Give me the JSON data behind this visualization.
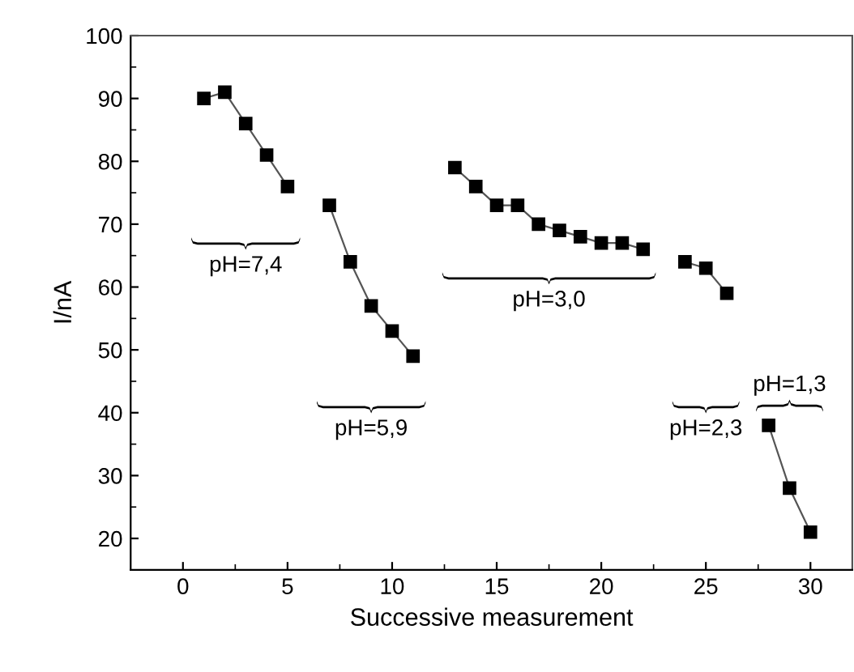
{
  "chart_data": {
    "type": "line",
    "xlabel": "Successive measurement",
    "ylabel": "I/nA",
    "xlim": [
      -2.5,
      32
    ],
    "ylim": [
      15,
      100
    ],
    "xticks": [
      0,
      5,
      10,
      15,
      20,
      25,
      30
    ],
    "yticks": [
      20,
      30,
      40,
      50,
      60,
      70,
      80,
      90,
      100
    ],
    "marker": "square",
    "line_style": "solid",
    "grid": false,
    "legend": false,
    "series": [
      {
        "color": "#000000",
        "x": [
          1,
          2,
          3,
          4,
          5
        ],
        "values": [
          90,
          91,
          86,
          81,
          76
        ]
      },
      {
        "color": "#000000",
        "x": [
          7,
          8,
          9,
          10,
          11
        ],
        "values": [
          73,
          64,
          57,
          53,
          49
        ]
      },
      {
        "color": "#000000",
        "x": [
          13,
          14,
          15,
          16,
          17,
          18,
          19,
          20,
          21,
          22
        ],
        "values": [
          79,
          76,
          73,
          73,
          70,
          69,
          68,
          67,
          67,
          66
        ]
      },
      {
        "color": "#000000",
        "x": [
          24,
          25,
          26
        ],
        "values": [
          64,
          63,
          59
        ]
      },
      {
        "color": "#000000",
        "x": [
          28,
          29,
          30
        ],
        "values": [
          38,
          28,
          21
        ]
      }
    ],
    "annotations": [
      "pH=7,4",
      "pH=5,9",
      "pH=3,0",
      "pH=2,3",
      "pH=1,3"
    ]
  }
}
